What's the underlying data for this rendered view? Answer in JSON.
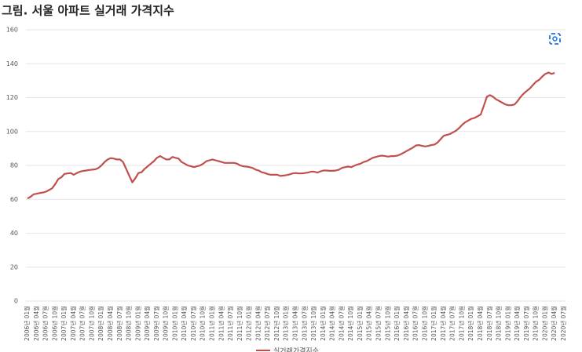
{
  "chart_data": {
    "type": "line",
    "title": "그림. 서울 아파트 실거래 가격지수",
    "categories": [
      "2006년 01월",
      null,
      null,
      "2006년 04월",
      null,
      null,
      "2006년 07월",
      null,
      null,
      "2006년 10월",
      null,
      null,
      "2007년 01월",
      null,
      null,
      "2007년 04월",
      null,
      null,
      "2007년 07월",
      null,
      null,
      "2007년 10월",
      null,
      null,
      "2008년 01월",
      null,
      null,
      "2008년 04월",
      null,
      null,
      "2008년 07월",
      null,
      null,
      "2008년 10월",
      null,
      null,
      "2009년 01월",
      null,
      null,
      "2009년 04월",
      null,
      null,
      "2009년 07월",
      null,
      null,
      "2009년 10월",
      null,
      null,
      "2010년 01월",
      null,
      null,
      "2010년 04월",
      null,
      null,
      "2010년 07월",
      null,
      null,
      "2010년 10월",
      null,
      null,
      "2011년 01월",
      null,
      null,
      "2011년 04월",
      null,
      null,
      "2011년 07월",
      null,
      null,
      "2011년 10월",
      null,
      null,
      "2012년 01월",
      null,
      null,
      "2012년 04월",
      null,
      null,
      "2012년 07월",
      null,
      null,
      "2012년 10월",
      null,
      null,
      "2013년 01월",
      null,
      null,
      "2013년 04월",
      null,
      null,
      "2013년 07월",
      null,
      null,
      "2013년 10월",
      null,
      null,
      "2014년 01월",
      null,
      null,
      "2014년 04월",
      null,
      null,
      "2014년 07월",
      null,
      null,
      "2014년 10월",
      null,
      null,
      "2015년 01월",
      null,
      null,
      "2015년 04월",
      null,
      null,
      "2015년 07월",
      null,
      null,
      "2015년 10월",
      null,
      null,
      "2016년 01월",
      null,
      null,
      "2016년 04월",
      null,
      null,
      "2016년 07월",
      null,
      null,
      "2016년 10월",
      null,
      null,
      "2017년 01월",
      null,
      null,
      "2017년 04월",
      null,
      null,
      "2017년 07월",
      null,
      null,
      "2017년 10월",
      null,
      null,
      "2018년 01월",
      null,
      null,
      "2018년 04월",
      null,
      null,
      "2018년 07월",
      null,
      null,
      "2018년 10월",
      null,
      null,
      "2019년 01월",
      null,
      null,
      "2019년 04월",
      null,
      null,
      "2019년 07월",
      null,
      null,
      "2019년 10월",
      null,
      null,
      "2020년 01월",
      null,
      null,
      "2020년 04월",
      null,
      null,
      "2020년 07월"
    ],
    "series": [
      {
        "name": "실거래가격지수",
        "color": "#bf504d",
        "values": [
          60.5,
          61.5,
          63,
          63.3,
          63.7,
          64,
          64.5,
          65.5,
          66.5,
          69,
          72,
          73,
          75,
          75.3,
          75.5,
          74.5,
          75.5,
          76.3,
          76.7,
          77,
          77.3,
          77.5,
          77.7,
          78.5,
          80,
          82,
          83.5,
          84.3,
          84,
          83.5,
          83.5,
          82,
          78,
          74,
          70,
          72.5,
          75.5,
          76,
          78,
          79.5,
          81,
          82.5,
          84.5,
          85.5,
          84.5,
          83.5,
          83.5,
          85,
          84.5,
          84,
          82,
          81,
          80,
          79.5,
          79,
          79.5,
          80,
          81,
          82.5,
          83,
          83.5,
          83,
          82.5,
          82,
          81.5,
          81.5,
          81.5,
          81.5,
          81,
          80,
          79.5,
          79.3,
          79,
          78.5,
          77.5,
          77,
          76,
          75.5,
          74.8,
          74.5,
          74.5,
          74.5,
          73.8,
          74,
          74.3,
          74.7,
          75.3,
          75.5,
          75.3,
          75.3,
          75.5,
          75.8,
          76.3,
          76.3,
          75.8,
          76.5,
          77,
          77,
          76.8,
          76.8,
          77,
          77.5,
          78.5,
          79,
          79.3,
          79,
          79.8,
          80.5,
          81,
          82,
          82.5,
          83.5,
          84.5,
          85,
          85.5,
          85.8,
          85.5,
          85.2,
          85.5,
          85.5,
          85.8,
          86.5,
          87.5,
          88.5,
          89.5,
          90.5,
          91.8,
          92,
          91.5,
          91.2,
          91.5,
          92,
          92.3,
          93.5,
          95.5,
          97.5,
          98,
          98.5,
          99.5,
          100.5,
          102,
          104,
          105.5,
          106.5,
          107.5,
          108,
          109,
          110,
          115,
          120.5,
          121.5,
          120.5,
          119,
          118,
          117,
          116,
          115.5,
          115.5,
          116,
          118,
          120.5,
          122.5,
          124,
          125.5,
          127.5,
          129.5,
          130.5,
          132.5,
          134,
          134.8,
          134,
          134.5,
          null,
          null,
          null
        ]
      }
    ],
    "ylim": [
      0,
      160
    ],
    "yticks": [
      0,
      20,
      40,
      60,
      80,
      100,
      120,
      140,
      160
    ],
    "grid": true
  }
}
